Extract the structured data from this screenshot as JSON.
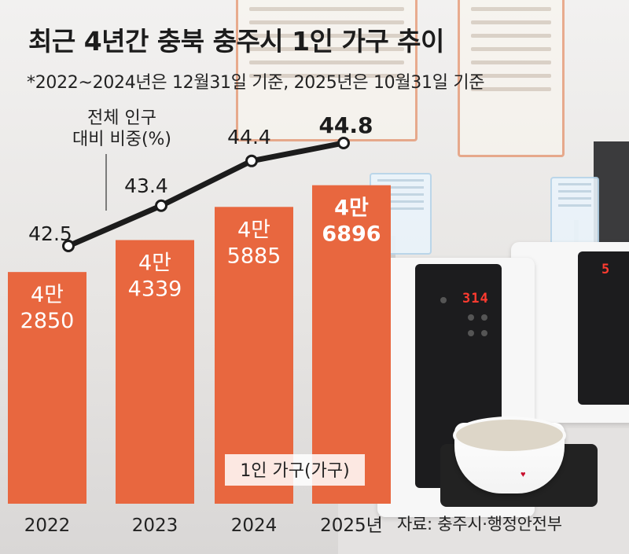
{
  "chart_data": {
    "type": "bar+line",
    "title": "최근 4년간 충북 충주시 1인 가구 추이",
    "subtitle": "*2022~2024년은 12월31일 기준, 2025년은 10월31일 기준",
    "categories": [
      "2022",
      "2023",
      "2024",
      "2025년"
    ],
    "bar_series": {
      "name": "1인 가구(가구)",
      "values": [
        42850,
        44339,
        45885,
        46896
      ],
      "labels_top": [
        "4만",
        "4만",
        "4만",
        "4만"
      ],
      "labels_bottom": [
        "2850",
        "4339",
        "5885",
        "6896"
      ],
      "color": "#e8673f"
    },
    "line_series": {
      "name": "전체 인구 대비 비중(%)",
      "label_lines": [
        "전체 인구",
        "대비 비중(%)"
      ],
      "values": [
        42.5,
        43.4,
        44.4,
        44.8
      ],
      "value_labels": [
        "42.5",
        "43.4",
        "44.4",
        "44.8"
      ],
      "color": "#1c1c1c"
    },
    "source": "자료: 충주시·행정안전부"
  }
}
